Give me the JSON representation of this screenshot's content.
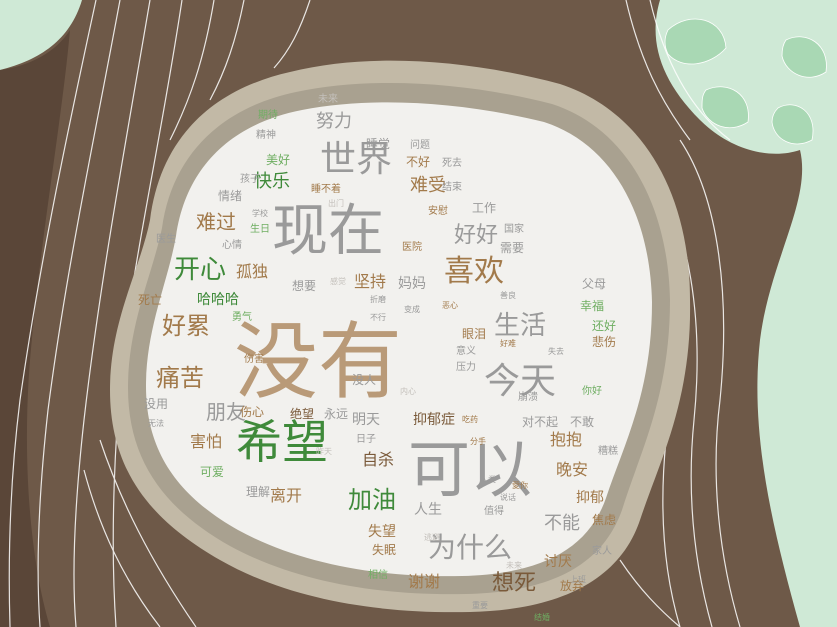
{
  "palette": {
    "sky": "#cfe9d6",
    "trunk": "#6e5948",
    "trunk_dark": "#5a4638",
    "ring_outer": "#c2b9a6",
    "ring_mid": "#a9a190",
    "panel": "#f2f1ee",
    "leaf": "#a9d8b4",
    "leaf_vein": "#ffffff"
  },
  "word_color_roles": {
    "gray": "#9a9a9a",
    "tan": "#b99a78",
    "brown": "#a27a4b",
    "green": "#3f8a3a",
    "light_green": "#6fae62",
    "dark_brown": "#7a5a3a",
    "pale": "#c4c0bb"
  },
  "words": [
    {
      "text": "没有",
      "color": "tan"
    },
    {
      "text": "现在",
      "color": "gray"
    },
    {
      "text": "可以",
      "color": "gray"
    },
    {
      "text": "希望",
      "color": "green"
    },
    {
      "text": "今天",
      "color": "gray"
    },
    {
      "text": "世界",
      "color": "gray"
    },
    {
      "text": "喜欢",
      "color": "brown"
    },
    {
      "text": "开心",
      "color": "green"
    },
    {
      "text": "痛苦",
      "color": "brown"
    },
    {
      "text": "好累",
      "color": "brown"
    },
    {
      "text": "生活",
      "color": "gray"
    },
    {
      "text": "好好",
      "color": "gray"
    },
    {
      "text": "加油",
      "color": "green"
    },
    {
      "text": "为什么",
      "color": "gray"
    },
    {
      "text": "想死",
      "color": "dark_brown"
    },
    {
      "text": "难过",
      "color": "brown"
    },
    {
      "text": "快乐",
      "color": "green"
    },
    {
      "text": "朋友",
      "color": "gray"
    },
    {
      "text": "努力",
      "color": "gray"
    },
    {
      "text": "难受",
      "color": "brown"
    },
    {
      "text": "坚持",
      "color": "brown"
    },
    {
      "text": "孤独",
      "color": "brown"
    },
    {
      "text": "哈哈哈",
      "color": "green"
    },
    {
      "text": "害怕",
      "color": "brown"
    },
    {
      "text": "自杀",
      "color": "dark_brown"
    },
    {
      "text": "不能",
      "color": "gray"
    },
    {
      "text": "晚安",
      "color": "brown"
    },
    {
      "text": "抱抱",
      "color": "brown"
    },
    {
      "text": "抑郁症",
      "color": "dark_brown"
    },
    {
      "text": "离开",
      "color": "brown"
    },
    {
      "text": "讨厌",
      "color": "brown"
    },
    {
      "text": "谢谢",
      "color": "brown"
    },
    {
      "text": "明天",
      "color": "gray"
    },
    {
      "text": "人生",
      "color": "gray"
    },
    {
      "text": "抑郁",
      "color": "brown"
    },
    {
      "text": "放弃",
      "color": "brown"
    },
    {
      "text": "失望",
      "color": "brown"
    },
    {
      "text": "可爱",
      "color": "light_green"
    },
    {
      "text": "伤心",
      "color": "brown"
    },
    {
      "text": "绝望",
      "color": "dark_brown"
    },
    {
      "text": "妈妈",
      "color": "gray"
    },
    {
      "text": "想要",
      "color": "gray"
    },
    {
      "text": "幸福",
      "color": "light_green"
    },
    {
      "text": "悲伤",
      "color": "brown"
    },
    {
      "text": "还好",
      "color": "light_green"
    },
    {
      "text": "父母",
      "color": "gray"
    },
    {
      "text": "眼泪",
      "color": "brown"
    },
    {
      "text": "情绪",
      "color": "gray"
    },
    {
      "text": "心情",
      "color": "gray"
    },
    {
      "text": "医生",
      "color": "gray"
    },
    {
      "text": "工作",
      "color": "gray"
    },
    {
      "text": "美好",
      "color": "light_green"
    },
    {
      "text": "睡觉",
      "color": "gray"
    },
    {
      "text": "不好",
      "color": "brown"
    },
    {
      "text": "医院",
      "color": "brown"
    },
    {
      "text": "需要",
      "color": "gray"
    },
    {
      "text": "没人",
      "color": "gray"
    },
    {
      "text": "没用",
      "color": "gray"
    },
    {
      "text": "永远",
      "color": "gray"
    },
    {
      "text": "对不起",
      "color": "gray"
    },
    {
      "text": "不敢",
      "color": "gray"
    },
    {
      "text": "死亡",
      "color": "brown"
    },
    {
      "text": "崩溃",
      "color": "gray"
    },
    {
      "text": "焦虑",
      "color": "brown"
    },
    {
      "text": "失眠",
      "color": "brown"
    },
    {
      "text": "家人",
      "color": "gray"
    },
    {
      "text": "问题",
      "color": "gray"
    },
    {
      "text": "死去",
      "color": "gray"
    },
    {
      "text": "安慰",
      "color": "brown"
    },
    {
      "text": "国家",
      "color": "gray"
    },
    {
      "text": "相信",
      "color": "light_green"
    },
    {
      "text": "伤害",
      "color": "brown"
    },
    {
      "text": "勇气",
      "color": "light_green"
    },
    {
      "text": "理解",
      "color": "gray"
    },
    {
      "text": "日子",
      "color": "gray"
    },
    {
      "text": "值得",
      "color": "gray"
    },
    {
      "text": "精神",
      "color": "gray"
    },
    {
      "text": "孩子",
      "color": "gray"
    },
    {
      "text": "未来",
      "color": "pale"
    },
    {
      "text": "期待",
      "color": "light_green"
    },
    {
      "text": "糟糕",
      "color": "gray"
    },
    {
      "text": "睡不着",
      "color": "brown"
    },
    {
      "text": "结束",
      "color": "gray"
    },
    {
      "text": "生日",
      "color": "light_green"
    },
    {
      "text": "意义",
      "color": "gray"
    },
    {
      "text": "压力",
      "color": "gray"
    },
    {
      "text": "吃药",
      "color": "brown"
    },
    {
      "text": "无法",
      "color": "gray"
    },
    {
      "text": "说话",
      "color": "gray"
    },
    {
      "text": "你好",
      "color": "light_green"
    },
    {
      "text": "愛你",
      "color": "brown"
    },
    {
      "text": "学校",
      "color": "gray"
    },
    {
      "text": "出门",
      "color": "pale"
    },
    {
      "text": "内心",
      "color": "pale"
    },
    {
      "text": "昨天",
      "color": "pale"
    },
    {
      "text": "感觉",
      "color": "pale"
    },
    {
      "text": "折磨",
      "color": "gray"
    },
    {
      "text": "不行",
      "color": "gray"
    },
    {
      "text": "变成",
      "color": "gray"
    },
    {
      "text": "分手",
      "color": "brown"
    },
    {
      "text": "逃避",
      "color": "pale"
    },
    {
      "text": "恶心",
      "color": "brown"
    },
    {
      "text": "上班",
      "color": "gray"
    },
    {
      "text": "未来",
      "color": "pale"
    },
    {
      "text": "重要",
      "color": "gray"
    },
    {
      "text": "善良",
      "color": "gray"
    },
    {
      "text": "结婚",
      "color": "light_green"
    },
    {
      "text": "人类",
      "color": "gray"
    },
    {
      "text": "失去",
      "color": "gray"
    },
    {
      "text": "好难",
      "color": "brown"
    }
  ]
}
